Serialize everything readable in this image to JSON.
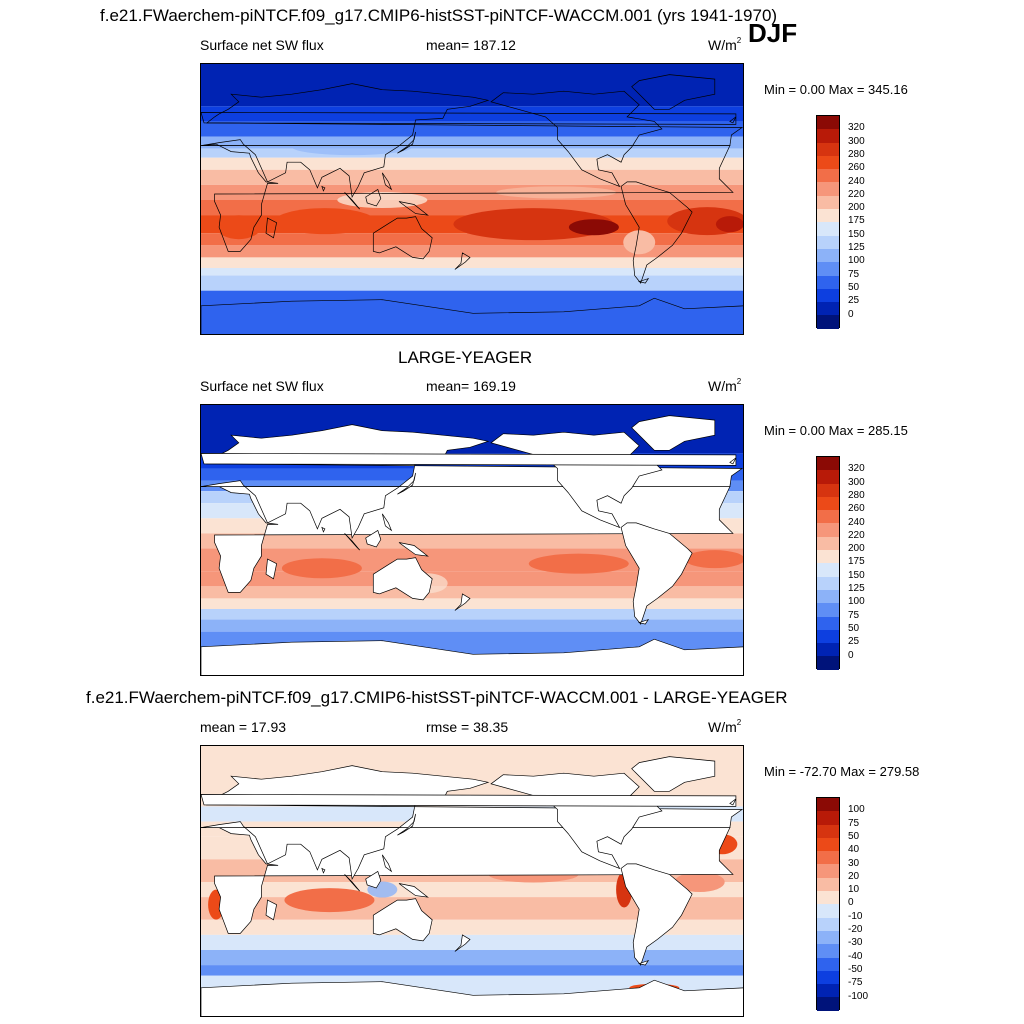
{
  "header": {
    "title": "f.e21.FWaerchem-piNTCF.f09_g17.CMIP6-histSST-piNTCF-WACCM.001 (yrs 1941-1970)",
    "season": "DJF"
  },
  "panels": [
    {
      "variable": "Surface net SW flux",
      "stat": "mean= 187.12",
      "units_base": "W/m",
      "units_exp": "2",
      "minmax": "Min =   0.00 Max = 345.16",
      "land_masked": false
    },
    {
      "title": "LARGE-YEAGER",
      "variable": "Surface net SW flux",
      "stat": "mean= 169.19",
      "units_base": "W/m",
      "units_exp": "2",
      "minmax": "Min =   0.00 Max = 285.15",
      "land_masked": true
    },
    {
      "title": "f.e21.FWaerchem-piNTCF.f09_g17.CMIP6-histSST-piNTCF-WACCM.001 - LARGE-YEAGER",
      "stat_left": "mean =  17.93",
      "stat_mid": "rmse =  38.35",
      "units_base": "W/m",
      "units_exp": "2",
      "minmax": "Min = -72.70 Max = 279.58",
      "land_masked": true
    }
  ],
  "colorbars": {
    "absolute": {
      "labels": [
        "320",
        "300",
        "280",
        "260",
        "240",
        "220",
        "200",
        "175",
        "150",
        "125",
        "100",
        "75",
        "50",
        "25",
        "0"
      ],
      "colors_top_to_bottom": [
        "#8b0a05",
        "#b81a08",
        "#d63410",
        "#ec4a18",
        "#f26e48",
        "#f6967a",
        "#f9bca4",
        "#fbe3d3",
        "#d8e7fa",
        "#b8d2fb",
        "#8cb2f8",
        "#5f8ef5",
        "#2f63ee",
        "#0d3fe0",
        "#0023b3",
        "#00137a"
      ]
    },
    "difference": {
      "labels": [
        "100",
        "75",
        "50",
        "40",
        "30",
        "20",
        "10",
        "0",
        "-10",
        "-20",
        "-30",
        "-40",
        "-50",
        "-75",
        "-100"
      ],
      "colors_top_to_bottom": [
        "#8b0a05",
        "#b81a08",
        "#d63410",
        "#ec4a18",
        "#f26e48",
        "#f6967a",
        "#f9bca4",
        "#fbe3d3",
        "#d8e7fa",
        "#b8d2fb",
        "#8cb2f8",
        "#5f8ef5",
        "#2f63ee",
        "#0d3fe0",
        "#0023b3",
        "#00137a"
      ]
    }
  },
  "colors": {
    "land": "#ffffff",
    "coastline": "#000000"
  }
}
